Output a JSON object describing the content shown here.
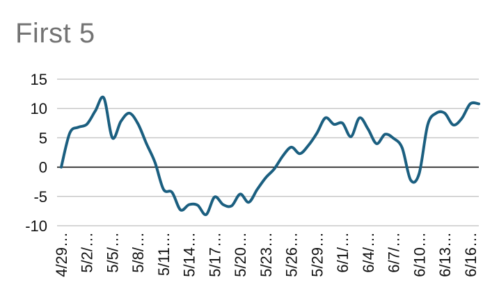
{
  "chart_data": {
    "type": "line",
    "title": "First 5",
    "xlabel": "",
    "ylabel": "",
    "ylim": [
      -10,
      15
    ],
    "yticks": [
      -10,
      -5,
      0,
      5,
      10,
      15
    ],
    "grid": true,
    "legend": "none",
    "color": "#1b5f80",
    "x_tick_labels": [
      "4/29…",
      "5/2/…",
      "5/5/…",
      "5/8/…",
      "5/11…",
      "5/14…",
      "5/17…",
      "5/20…",
      "5/23…",
      "5/26…",
      "5/29…",
      "6/1/…",
      "6/4/…",
      "6/7/…",
      "6/10…",
      "6/13…",
      "6/16…"
    ],
    "x": [
      "4/29",
      "4/30",
      "5/1",
      "5/2",
      "5/3",
      "5/4",
      "5/5",
      "5/6",
      "5/7",
      "5/8",
      "5/9",
      "5/10",
      "5/11",
      "5/12",
      "5/13",
      "5/14",
      "5/15",
      "5/16",
      "5/17",
      "5/18",
      "5/19",
      "5/20",
      "5/21",
      "5/22",
      "5/23",
      "5/24",
      "5/25",
      "5/26",
      "5/27",
      "5/28",
      "5/29",
      "5/30",
      "5/31",
      "6/1",
      "6/2",
      "6/3",
      "6/4",
      "6/5",
      "6/6",
      "6/7",
      "6/8",
      "6/9",
      "6/10",
      "6/11",
      "6/12",
      "6/13",
      "6/14",
      "6/15",
      "6/16",
      "6/17"
    ],
    "series": [
      {
        "values": [
          0,
          5.8,
          6.8,
          7.3,
          9.6,
          11.8,
          5,
          7.8,
          9.2,
          7.4,
          4,
          0.8,
          -3.8,
          -4.3,
          -7.3,
          -6.4,
          -6.5,
          -8.1,
          -5.1,
          -6.4,
          -6.6,
          -4.6,
          -6.0,
          -3.8,
          -1.8,
          -0.3,
          1.9,
          3.4,
          2.3,
          3.7,
          5.8,
          8.4,
          7.3,
          7.5,
          5.2,
          8.4,
          6.5,
          4.0,
          5.6,
          4.9,
          3.3,
          -2.2,
          -1.1,
          7.2,
          9.2,
          9.2,
          7.2,
          8.3,
          10.8,
          10.8
        ]
      }
    ]
  }
}
